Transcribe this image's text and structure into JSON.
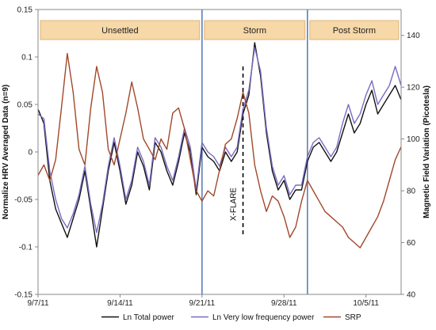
{
  "chart_data": {
    "type": "line",
    "title": "",
    "xlabel": "",
    "ylabel_left": "Normalize HRV Averaged Data (n=9)",
    "ylabel_right": "Magnetic Field Variation (Picotesla)",
    "xlim": [
      "2011-09-07",
      "2011-10-08"
    ],
    "ylim_left": [
      -0.15,
      0.15
    ],
    "ylim_right": [
      40,
      150
    ],
    "x_ticks": [
      {
        "date": "2011-09-07",
        "label": "9/7/11"
      },
      {
        "date": "2011-09-14",
        "label": "9/14/11"
      },
      {
        "date": "2011-09-21",
        "label": "9/21/11"
      },
      {
        "date": "2011-09-28",
        "label": "9/28/11"
      },
      {
        "date": "2011-10-05",
        "label": "10/5/11"
      }
    ],
    "y_ticks_left": [
      {
        "value": 0.15,
        "label": "0.15"
      },
      {
        "value": 0.1,
        "label": "0.1"
      },
      {
        "value": 0.05,
        "label": "0.05"
      },
      {
        "value": 0,
        "label": "0"
      },
      {
        "value": -0.05,
        "label": "-0.05"
      },
      {
        "value": -0.1,
        "label": "-0.1"
      },
      {
        "value": -0.15,
        "label": "-0.15"
      }
    ],
    "y_ticks_right": [
      {
        "value": 40,
        "label": "40"
      },
      {
        "value": 60,
        "label": "60"
      },
      {
        "value": 80,
        "label": "80"
      },
      {
        "value": 100,
        "label": "100"
      },
      {
        "value": 120,
        "label": "120"
      },
      {
        "value": 140,
        "label": "140"
      }
    ],
    "grid": false,
    "legend_position": "bottom",
    "periods": [
      {
        "label": "Unsettled",
        "start": "2011-09-07",
        "end": "2011-09-21"
      },
      {
        "label": "Storm",
        "start": "2011-09-21",
        "end": "2011-09-30"
      },
      {
        "label": "Post Storm",
        "start": "2011-09-30",
        "end": "2011-10-08"
      }
    ],
    "period_color": "#f7d8a8",
    "period_border": "#d9a860",
    "period_dividers": [
      "2011-09-21",
      "2011-09-30"
    ],
    "divider_color": "#5b7fb5",
    "annotations": [
      {
        "label": "X-FLARE",
        "date": "2011-09-24.5",
        "y_from": -0.09,
        "y_to": 0.09
      }
    ],
    "series": [
      {
        "name": "Ln Total power",
        "axis": "left",
        "color": "#111111",
        "x": [
          "2011-09-07",
          "2011-09-07.5",
          "2011-09-08",
          "2011-09-08.5",
          "2011-09-09",
          "2011-09-09.5",
          "2011-09-10",
          "2011-09-10.5",
          "2011-09-11",
          "2011-09-11.5",
          "2011-09-12",
          "2011-09-12.5",
          "2011-09-13",
          "2011-09-13.5",
          "2011-09-14",
          "2011-09-14.5",
          "2011-09-15",
          "2011-09-15.5",
          "2011-09-16",
          "2011-09-16.5",
          "2011-09-17",
          "2011-09-17.5",
          "2011-09-18",
          "2011-09-18.5",
          "2011-09-19",
          "2011-09-19.5",
          "2011-09-20",
          "2011-09-20.5",
          "2011-09-21",
          "2011-09-21.5",
          "2011-09-22",
          "2011-09-22.5",
          "2011-09-23",
          "2011-09-23.5",
          "2011-09-24",
          "2011-09-24.5",
          "2011-09-25",
          "2011-09-25.5",
          "2011-09-26",
          "2011-09-26.5",
          "2011-09-27",
          "2011-09-27.5",
          "2011-09-28",
          "2011-09-28.5",
          "2011-09-29",
          "2011-09-29.5",
          "2011-09-30",
          "2011-09-30.5",
          "2011-10-01",
          "2011-10-01.5",
          "2011-10-02",
          "2011-10-02.5",
          "2011-10-03",
          "2011-10-03.5",
          "2011-10-04",
          "2011-10-04.5",
          "2011-10-05",
          "2011-10-05.5",
          "2011-10-06",
          "2011-10-06.5",
          "2011-10-07",
          "2011-10-07.5",
          "2011-10-08"
        ],
        "values": [
          0.045,
          0.03,
          -0.03,
          -0.06,
          -0.075,
          -0.09,
          -0.07,
          -0.05,
          -0.02,
          -0.06,
          -0.1,
          -0.06,
          -0.02,
          0.01,
          -0.02,
          -0.055,
          -0.035,
          0.0,
          -0.015,
          -0.04,
          0.01,
          0.0,
          -0.02,
          -0.035,
          -0.01,
          0.02,
          0.0,
          -0.045,
          0.005,
          -0.005,
          -0.01,
          -0.02,
          0.0,
          -0.01,
          0.0,
          0.04,
          0.06,
          0.115,
          0.08,
          0.02,
          -0.02,
          -0.04,
          -0.03,
          -0.05,
          -0.04,
          -0.04,
          -0.01,
          0.005,
          0.01,
          0.0,
          -0.01,
          0.0,
          0.02,
          0.04,
          0.02,
          0.03,
          0.05,
          0.065,
          0.04,
          0.05,
          0.06,
          0.07,
          0.055
        ]
      },
      {
        "name": "Ln Very low frequency power",
        "axis": "left",
        "color": "#7b6bc2",
        "x": [
          "2011-09-07",
          "2011-09-07.5",
          "2011-09-08",
          "2011-09-08.5",
          "2011-09-09",
          "2011-09-09.5",
          "2011-09-10",
          "2011-09-10.5",
          "2011-09-11",
          "2011-09-11.5",
          "2011-09-12",
          "2011-09-12.5",
          "2011-09-13",
          "2011-09-13.5",
          "2011-09-14",
          "2011-09-14.5",
          "2011-09-15",
          "2011-09-15.5",
          "2011-09-16",
          "2011-09-16.5",
          "2011-09-17",
          "2011-09-17.5",
          "2011-09-18",
          "2011-09-18.5",
          "2011-09-19",
          "2011-09-19.5",
          "2011-09-20",
          "2011-09-20.5",
          "2011-09-21",
          "2011-09-21.5",
          "2011-09-22",
          "2011-09-22.5",
          "2011-09-23",
          "2011-09-23.5",
          "2011-09-24",
          "2011-09-24.5",
          "2011-09-25",
          "2011-09-25.5",
          "2011-09-26",
          "2011-09-26.5",
          "2011-09-27",
          "2011-09-27.5",
          "2011-09-28",
          "2011-09-28.5",
          "2011-09-29",
          "2011-09-29.5",
          "2011-09-30",
          "2011-09-30.5",
          "2011-10-01",
          "2011-10-01.5",
          "2011-10-02",
          "2011-10-02.5",
          "2011-10-03",
          "2011-10-03.5",
          "2011-10-04",
          "2011-10-04.5",
          "2011-10-05",
          "2011-10-05.5",
          "2011-10-06",
          "2011-10-06.5",
          "2011-10-07",
          "2011-10-07.5",
          "2011-10-08"
        ],
        "values": [
          0.04,
          0.035,
          -0.02,
          -0.05,
          -0.07,
          -0.08,
          -0.065,
          -0.045,
          -0.015,
          -0.055,
          -0.085,
          -0.055,
          -0.015,
          0.015,
          -0.015,
          -0.05,
          -0.03,
          0.005,
          -0.01,
          -0.035,
          0.015,
          0.005,
          -0.015,
          -0.03,
          -0.005,
          0.025,
          0.005,
          -0.04,
          0.01,
          0.0,
          -0.005,
          -0.015,
          0.005,
          -0.005,
          0.005,
          0.045,
          0.065,
          0.11,
          0.085,
          0.025,
          -0.015,
          -0.035,
          -0.025,
          -0.045,
          -0.035,
          -0.035,
          -0.005,
          0.01,
          0.015,
          0.005,
          -0.005,
          0.005,
          0.03,
          0.05,
          0.03,
          0.04,
          0.06,
          0.075,
          0.05,
          0.06,
          0.07,
          0.09,
          0.07
        ]
      },
      {
        "name": "SRP",
        "axis": "right",
        "color": "#a0482a",
        "x": [
          "2011-09-07",
          "2011-09-07.5",
          "2011-09-08",
          "2011-09-08.5",
          "2011-09-09",
          "2011-09-09.5",
          "2011-09-10",
          "2011-09-10.5",
          "2011-09-11",
          "2011-09-11.5",
          "2011-09-12",
          "2011-09-12.5",
          "2011-09-13",
          "2011-09-13.5",
          "2011-09-14",
          "2011-09-14.5",
          "2011-09-15",
          "2011-09-15.5",
          "2011-09-16",
          "2011-09-16.5",
          "2011-09-17",
          "2011-09-17.5",
          "2011-09-18",
          "2011-09-18.5",
          "2011-09-19",
          "2011-09-19.5",
          "2011-09-20",
          "2011-09-20.5",
          "2011-09-21",
          "2011-09-21.5",
          "2011-09-22",
          "2011-09-22.5",
          "2011-09-23",
          "2011-09-23.5",
          "2011-09-24",
          "2011-09-24.5",
          "2011-09-25",
          "2011-09-25.5",
          "2011-09-26",
          "2011-09-26.5",
          "2011-09-27",
          "2011-09-27.5",
          "2011-09-28",
          "2011-09-28.5",
          "2011-09-29",
          "2011-09-29.5",
          "2011-09-30",
          "2011-09-30.5",
          "2011-10-01",
          "2011-10-01.5",
          "2011-10-02",
          "2011-10-02.5",
          "2011-10-03",
          "2011-10-03.5",
          "2011-10-04",
          "2011-10-04.5",
          "2011-10-05",
          "2011-10-05.5",
          "2011-10-06",
          "2011-10-06.5",
          "2011-10-07",
          "2011-10-07.5",
          "2011-10-08"
        ],
        "values": [
          86,
          90,
          84,
          92,
          112,
          133,
          118,
          96,
          90,
          112,
          128,
          118,
          96,
          90,
          100,
          110,
          122,
          112,
          100,
          96,
          92,
          100,
          96,
          110,
          112,
          104,
          92,
          80,
          76,
          80,
          78,
          88,
          98,
          100,
          108,
          118,
          110,
          90,
          80,
          72,
          78,
          76,
          70,
          62,
          66,
          76,
          84,
          80,
          76,
          72,
          70,
          68,
          66,
          62,
          60,
          58,
          62,
          66,
          70,
          76,
          84,
          92,
          97
        ]
      }
    ],
    "legend": [
      "Ln Total power",
      "Ln Very low frequency power",
      "SRP"
    ]
  }
}
